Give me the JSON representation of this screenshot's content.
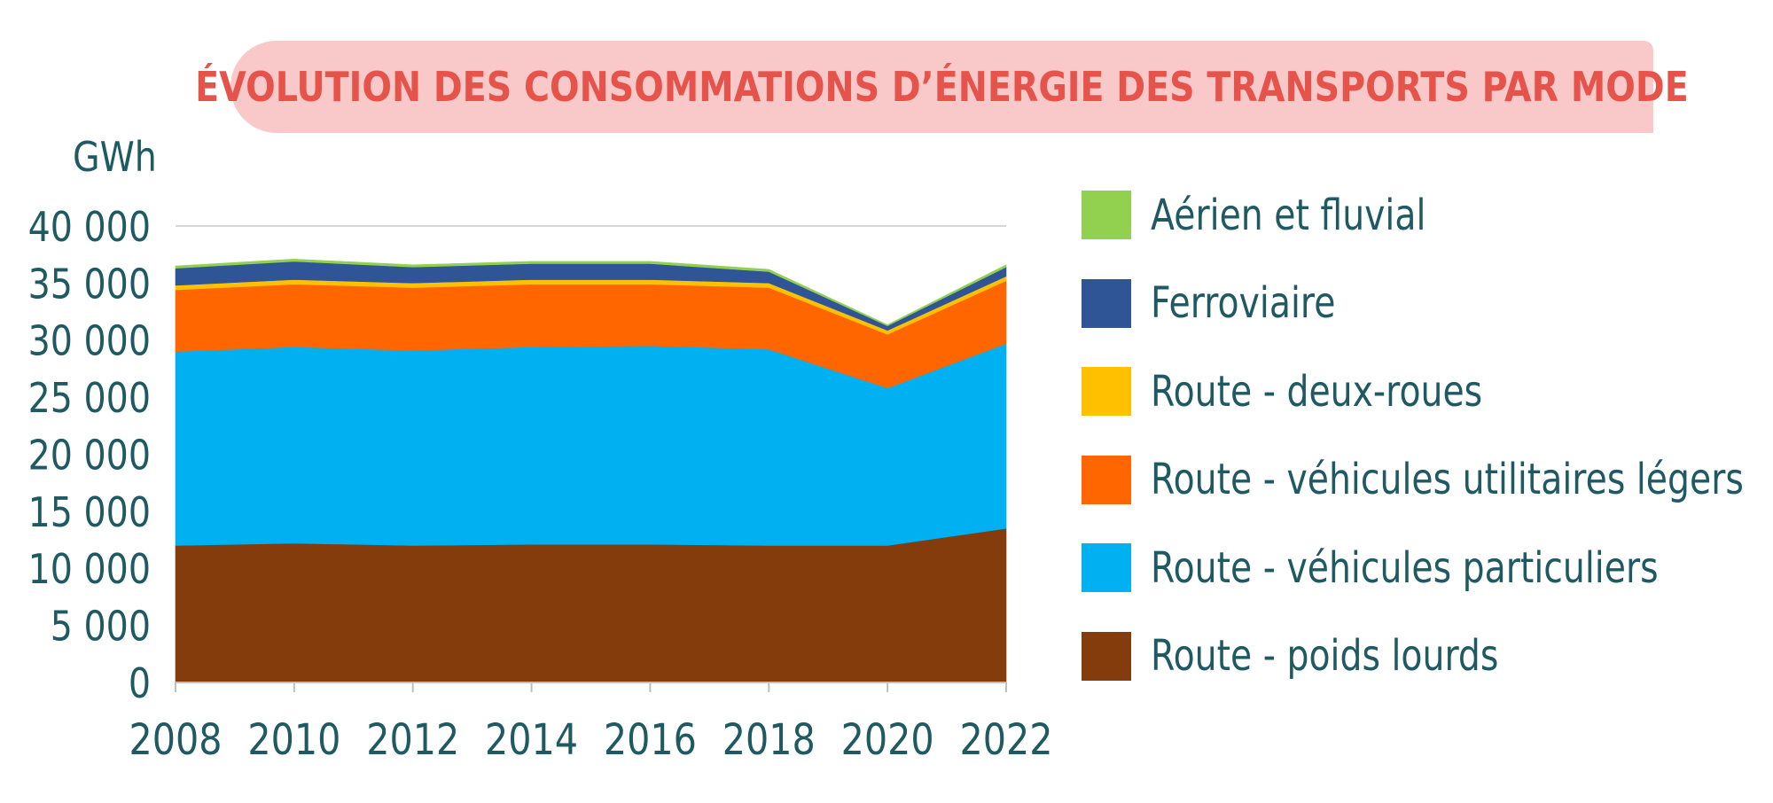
{
  "title": "ÉVOLUTION DES CONSOMMATIONS D’ÉNERGIE DES TRANSPORTS PAR MODE",
  "chart_data": {
    "type": "area",
    "stacked": true,
    "unit_label": "GWh",
    "x": [
      2008,
      2010,
      2012,
      2014,
      2016,
      2018,
      2020,
      2022
    ],
    "x_tick_labels": [
      "2008",
      "2010",
      "2012",
      "2014",
      "2016",
      "2018",
      "2020",
      "2022"
    ],
    "y_tick_labels": [
      "0",
      "5 000",
      "10 000",
      "15 000",
      "20 000",
      "25 000",
      "30 000",
      "35 000",
      "40 000"
    ],
    "y_ticks": [
      0,
      5000,
      10000,
      15000,
      20000,
      25000,
      30000,
      35000,
      40000
    ],
    "ylim": [
      0,
      40000
    ],
    "xlim": [
      2008,
      2022
    ],
    "grid": "top-line-only",
    "legend_position": "right",
    "series": [
      {
        "name": "Route - poids lourds",
        "color": "#843c0c",
        "values": [
          12000,
          12200,
          12000,
          12100,
          12100,
          12000,
          12000,
          13500
        ]
      },
      {
        "name": "Route - véhicules particuliers",
        "color": "#00b0f0",
        "values": [
          17000,
          17200,
          17100,
          17300,
          17400,
          17200,
          13800,
          16200
        ]
      },
      {
        "name": "Route - véhicules utilitaires légers",
        "color": "#ff6600",
        "values": [
          5400,
          5500,
          5500,
          5500,
          5400,
          5400,
          4700,
          5500
        ]
      },
      {
        "name": "Route - deux-roues",
        "color": "#ffc000",
        "values": [
          400,
          400,
          400,
          400,
          400,
          400,
          350,
          400
        ]
      },
      {
        "name": "Ferroviaire",
        "color": "#2f5597",
        "values": [
          1500,
          1600,
          1400,
          1400,
          1400,
          1000,
          400,
          800
        ]
      },
      {
        "name": "Aérien et fluvial",
        "color": "#92d050",
        "values": [
          200,
          200,
          200,
          200,
          200,
          200,
          100,
          200
        ]
      }
    ]
  },
  "legend": [
    {
      "label": "Aérien et fluvial",
      "color": "#92d050"
    },
    {
      "label": "Ferroviaire",
      "color": "#2f5597"
    },
    {
      "label": "Route - deux-roues",
      "color": "#ffc000"
    },
    {
      "label": "Route - véhicules utilitaires légers",
      "color": "#ff6600"
    },
    {
      "label": "Route - véhicules particuliers",
      "color": "#00b0f0"
    },
    {
      "label": "Route - poids lourds",
      "color": "#843c0c"
    }
  ]
}
